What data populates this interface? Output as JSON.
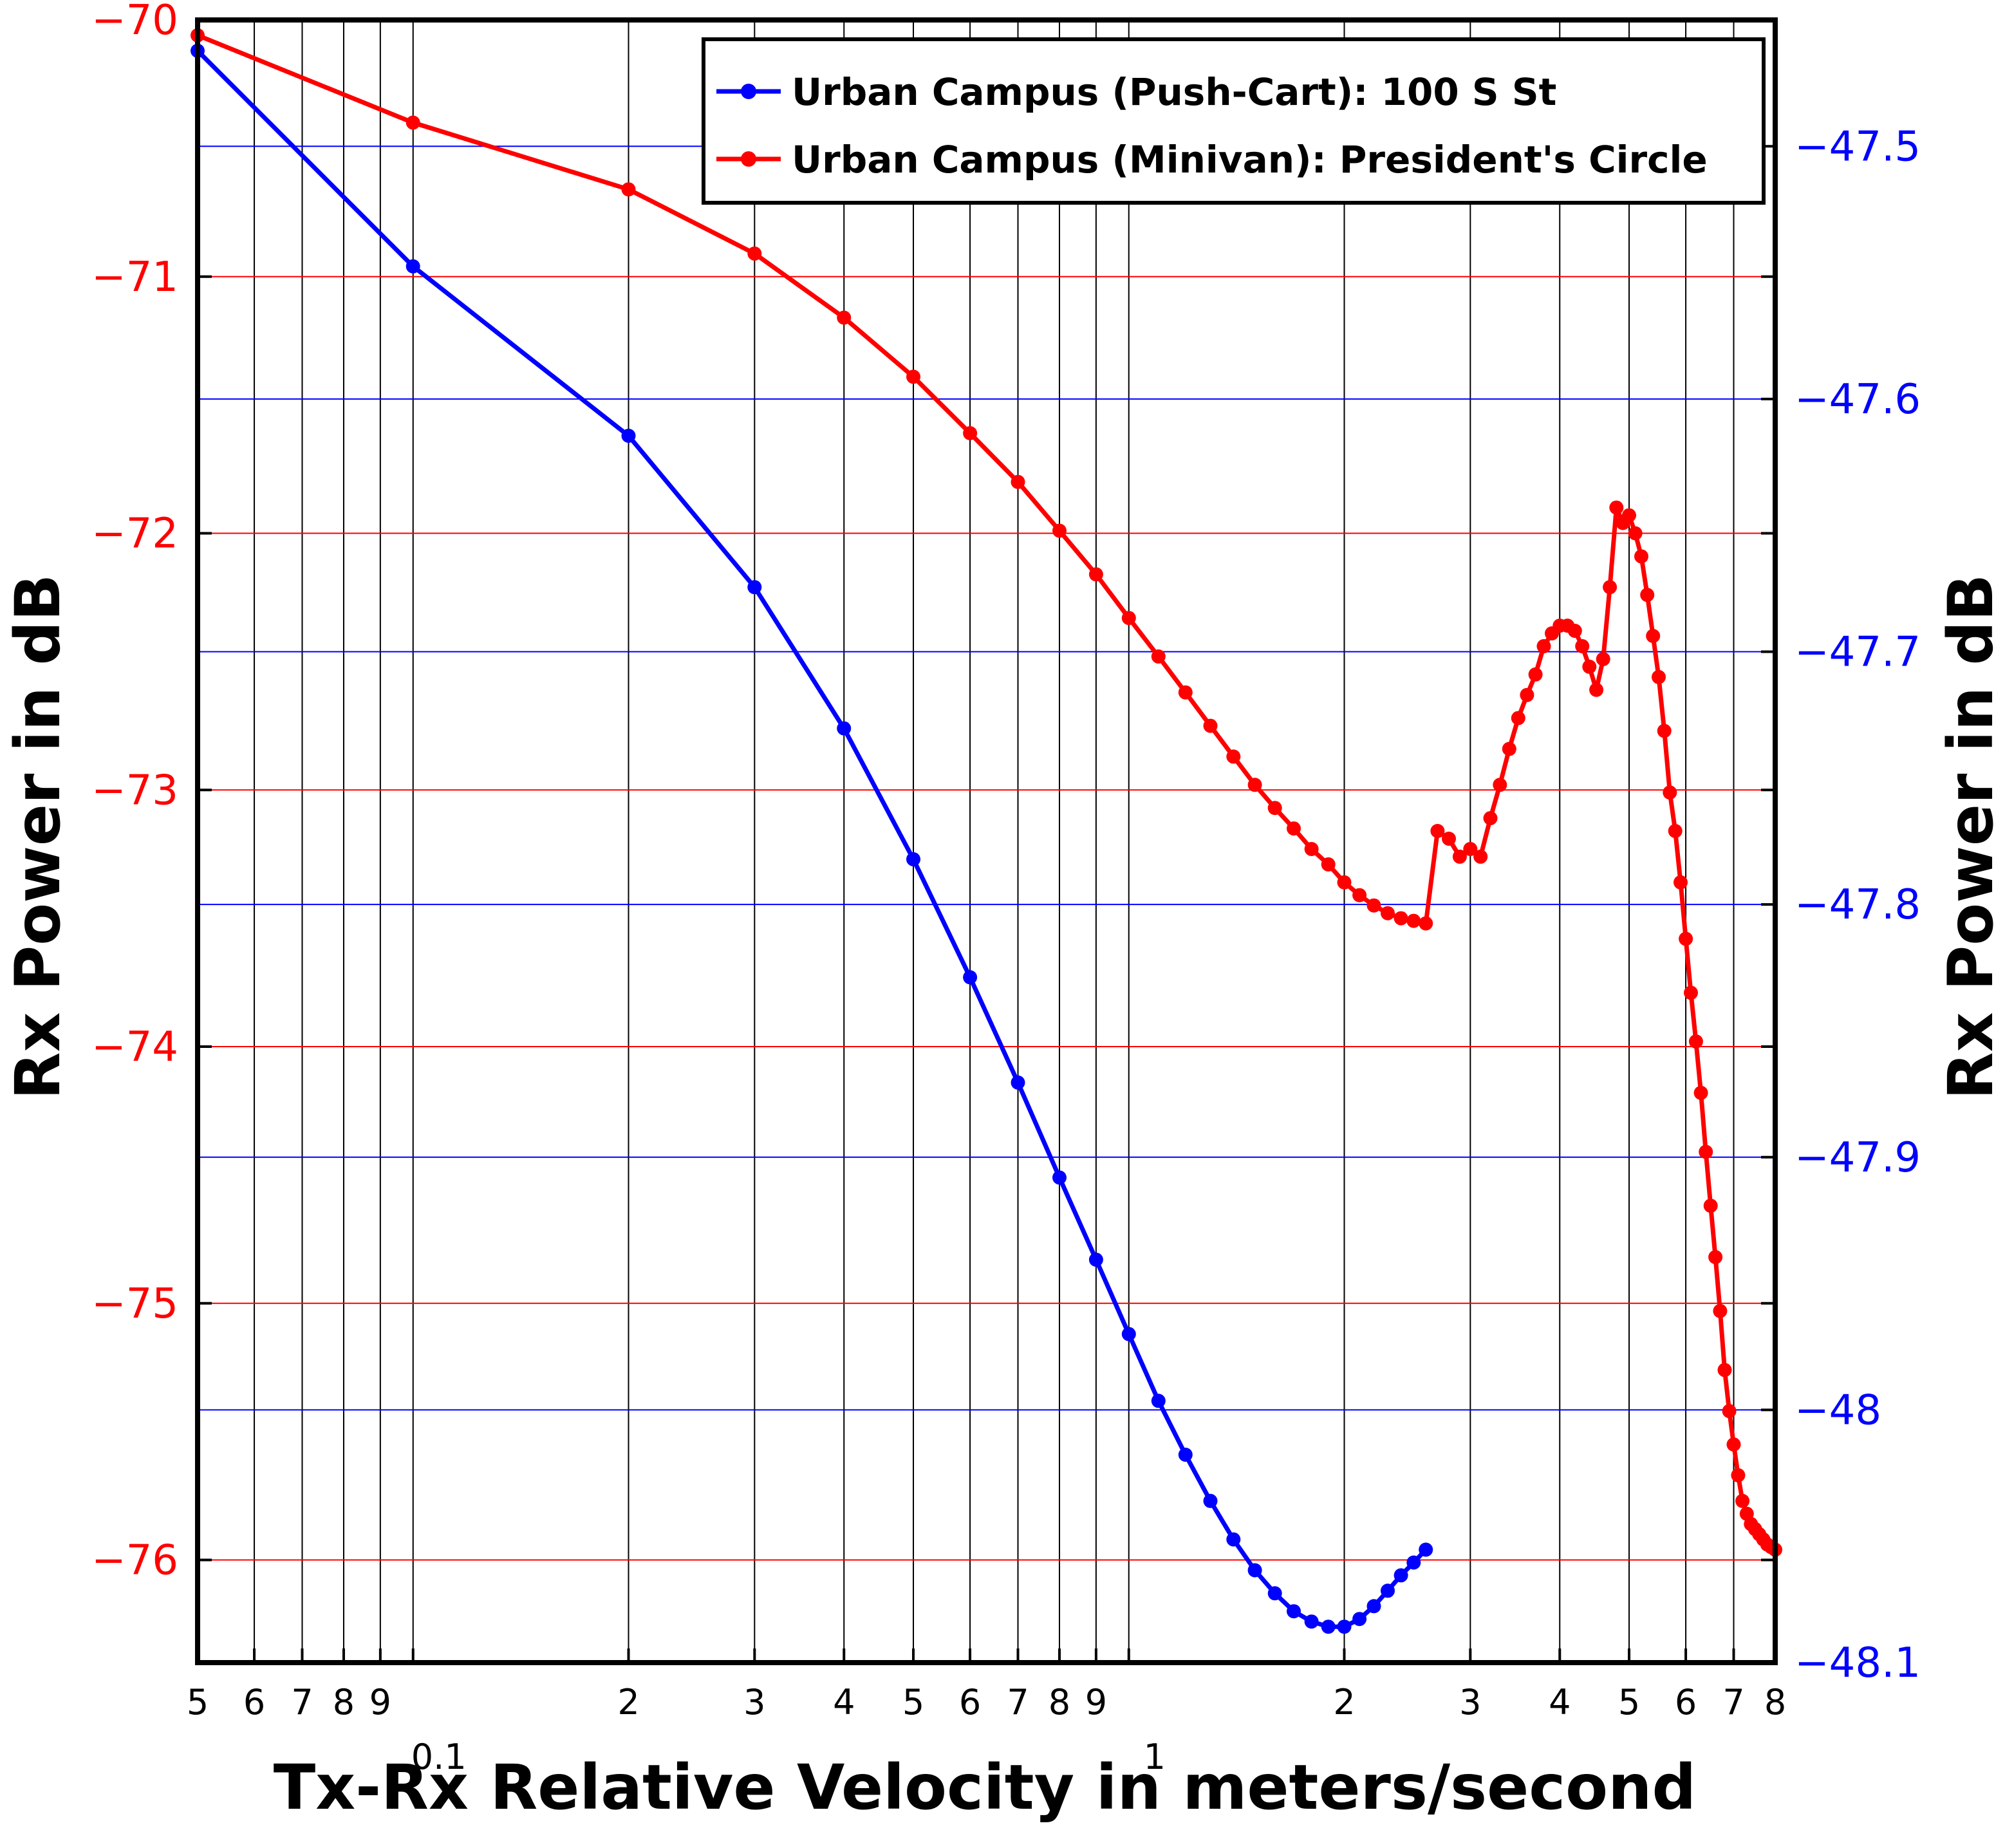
{
  "colors": {
    "left_axis": "#ff0000",
    "right_axis": "#0000ff",
    "series_blue": "#0000ff",
    "series_red": "#ff0000",
    "frame": "#000000"
  },
  "chart_data": {
    "type": "line",
    "xlabel": "Tx-Rx Relative Velocity in meters/second",
    "ylabel_left": "Rx Power in dB",
    "ylabel_right": "Rx Power in dB",
    "xscale": "log",
    "xlim": [
      0.05,
      8
    ],
    "ylim_left": [
      -76.4,
      -70
    ],
    "ylim_right": [
      -48.1,
      -47.45
    ],
    "grid": true,
    "legend_position": "top-right",
    "x_tick_labels": [
      {
        "x": 0.05,
        "label": "5"
      },
      {
        "x": 0.06,
        "label": "6"
      },
      {
        "x": 0.07,
        "label": "7"
      },
      {
        "x": 0.08,
        "label": "8"
      },
      {
        "x": 0.09,
        "label": "9"
      },
      {
        "x": 0.2,
        "label": "2"
      },
      {
        "x": 0.3,
        "label": "3"
      },
      {
        "x": 0.4,
        "label": "4"
      },
      {
        "x": 0.5,
        "label": "5"
      },
      {
        "x": 0.6,
        "label": "6"
      },
      {
        "x": 0.7,
        "label": "7"
      },
      {
        "x": 0.8,
        "label": "8"
      },
      {
        "x": 0.9,
        "label": "9"
      },
      {
        "x": 2,
        "label": "2"
      },
      {
        "x": 3,
        "label": "3"
      },
      {
        "x": 4,
        "label": "4"
      },
      {
        "x": 5,
        "label": "5"
      },
      {
        "x": 6,
        "label": "6"
      },
      {
        "x": 7,
        "label": "7"
      },
      {
        "x": 8,
        "label": "8"
      }
    ],
    "x_decade_labels": [
      {
        "x": 0.1,
        "label": "0.1"
      },
      {
        "x": 1,
        "label": "1"
      }
    ],
    "y_left_ticks": [
      {
        "y": -70,
        "label": "−70"
      },
      {
        "y": -71,
        "label": "−71"
      },
      {
        "y": -72,
        "label": "−72"
      },
      {
        "y": -73,
        "label": "−73"
      },
      {
        "y": -74,
        "label": "−74"
      },
      {
        "y": -75,
        "label": "−75"
      },
      {
        "y": -76,
        "label": "−76"
      }
    ],
    "y_right_ticks": [
      {
        "y": -47.5,
        "label": "−47.5"
      },
      {
        "y": -47.6,
        "label": "−47.6"
      },
      {
        "y": -47.7,
        "label": "−47.7"
      },
      {
        "y": -47.8,
        "label": "−47.8"
      },
      {
        "y": -47.9,
        "label": "−47.9"
      },
      {
        "y": -48.0,
        "label": "−48"
      },
      {
        "y": -48.1,
        "label": "−48.1"
      }
    ],
    "series": [
      {
        "name": "Urban Campus (Push-Cart): 100 S St",
        "axis": "left",
        "color": "#0000ff",
        "x": [
          0.05,
          0.1,
          0.2,
          0.3,
          0.4,
          0.5,
          0.6,
          0.7,
          0.8,
          0.9,
          1.0,
          1.1,
          1.2,
          1.3,
          1.4,
          1.5,
          1.6,
          1.7,
          1.8,
          1.9,
          2.0,
          2.1,
          2.2,
          2.3,
          2.4,
          2.5,
          2.6
        ],
        "y": [
          -70.12,
          -70.96,
          -71.62,
          -72.21,
          -72.76,
          -73.27,
          -73.73,
          -74.14,
          -74.51,
          -74.83,
          -75.12,
          -75.38,
          -75.59,
          -75.77,
          -75.92,
          -76.04,
          -76.13,
          -76.2,
          -76.24,
          -76.26,
          -76.26,
          -76.23,
          -76.18,
          -76.12,
          -76.06,
          -76.01,
          -75.96
        ]
      },
      {
        "name": "Urban Campus (Minivan): President's Circle",
        "axis": "left",
        "color": "#ff0000",
        "x": [
          0.05,
          0.1,
          0.2,
          0.3,
          0.4,
          0.5,
          0.6,
          0.7,
          0.8,
          0.9,
          1.0,
          1.1,
          1.2,
          1.3,
          1.4,
          1.5,
          1.6,
          1.7,
          1.8,
          1.9,
          2.0,
          2.1,
          2.2,
          2.3,
          2.4,
          2.5,
          2.6,
          2.7,
          2.8,
          2.9,
          3.0,
          3.1,
          3.2,
          3.3,
          3.4,
          3.5,
          3.6,
          3.7,
          3.8,
          3.9,
          4.0,
          4.1,
          4.2,
          4.3,
          4.4,
          4.5,
          4.6,
          4.7,
          4.8,
          4.9,
          5.0,
          5.1,
          5.2,
          5.3,
          5.4,
          5.5,
          5.6,
          5.7,
          5.8,
          5.9,
          6.0,
          6.1,
          6.2,
          6.3,
          6.4,
          6.5,
          6.6,
          6.7,
          6.8,
          6.9,
          7.0,
          7.1,
          7.2,
          7.3,
          7.4,
          7.5,
          7.6,
          7.7,
          7.8,
          7.9,
          8.0
        ],
        "y": [
          -70.06,
          -70.4,
          -70.66,
          -70.91,
          -71.16,
          -71.39,
          -71.61,
          -71.8,
          -71.99,
          -72.16,
          -72.33,
          -72.48,
          -72.62,
          -72.75,
          -72.87,
          -72.98,
          -73.07,
          -73.15,
          -73.23,
          -73.29,
          -73.36,
          -73.41,
          -73.45,
          -73.48,
          -73.5,
          -73.51,
          -73.52,
          -73.16,
          -73.19,
          -73.26,
          -73.23,
          -73.26,
          -73.11,
          -72.98,
          -72.84,
          -72.72,
          -72.63,
          -72.55,
          -72.44,
          -72.39,
          -72.36,
          -72.36,
          -72.38,
          -72.44,
          -72.52,
          -72.61,
          -72.49,
          -72.21,
          -71.9,
          -71.96,
          -71.93,
          -72.0,
          -72.09,
          -72.24,
          -72.4,
          -72.56,
          -72.77,
          -73.01,
          -73.16,
          -73.36,
          -73.58,
          -73.79,
          -73.98,
          -74.18,
          -74.41,
          -74.62,
          -74.82,
          -75.03,
          -75.26,
          -75.42,
          -75.55,
          -75.67,
          -75.77,
          -75.82,
          -75.86,
          -75.88,
          -75.9,
          -75.92,
          -75.94,
          -75.95,
          -75.96
        ]
      }
    ]
  }
}
